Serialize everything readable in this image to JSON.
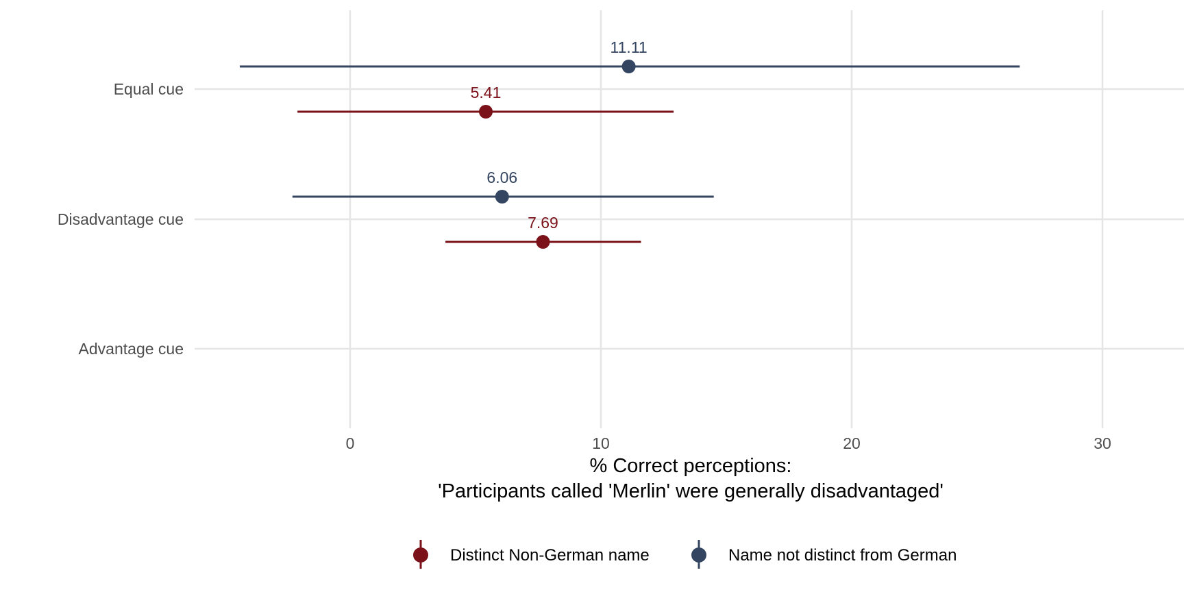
{
  "chart_data": {
    "type": "scatter",
    "orientation": "horizontal",
    "categories": [
      "Equal cue",
      "Disadvantage cue",
      "Advantage cue"
    ],
    "xlabel_lines": [
      "% Correct perceptions:",
      "'Participants called 'Merlin' were generally disadvantaged'"
    ],
    "ylabel": "",
    "xlim": [
      -6.2,
      33.2
    ],
    "x_ticks": [
      0,
      10,
      20,
      30
    ],
    "x_tick_labels": [
      "0",
      "10",
      "20",
      "30"
    ],
    "grid": true,
    "legend_position": "bottom",
    "series": [
      {
        "name": "Distinct Non-German name",
        "color": "#7b1119",
        "points": [
          {
            "category": "Equal cue",
            "value": 5.41,
            "lower": -2.1,
            "upper": 12.9,
            "label": "5.41"
          },
          {
            "category": "Disadvantage cue",
            "value": 7.69,
            "lower": 3.8,
            "upper": 11.6,
            "label": "7.69"
          }
        ]
      },
      {
        "name": "Name not distinct from German",
        "color": "#344561",
        "points": [
          {
            "category": "Equal cue",
            "value": 11.11,
            "lower": -4.4,
            "upper": 26.7,
            "label": "11.11"
          },
          {
            "category": "Disadvantage cue",
            "value": 6.06,
            "lower": -2.3,
            "upper": 14.5,
            "label": "6.06"
          }
        ]
      }
    ]
  }
}
